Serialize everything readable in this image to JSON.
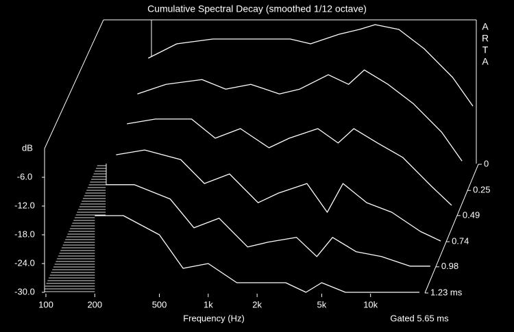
{
  "chart_data": {
    "type": "waterfall",
    "title": "Cumulative Spectral Decay (smoothed 1/12 octave)",
    "watermark": "ARTA",
    "ylabel": "dB",
    "xlabel": "Frequency (Hz)",
    "note": "Gated 5.65 ms",
    "log_x": true,
    "line_color": "#ffffff",
    "x": [
      200,
      300,
      500,
      700,
      1000,
      1500,
      2000,
      3000,
      4000,
      5000,
      7000,
      10000,
      15000,
      20000
    ],
    "xlim": [
      100,
      20000
    ],
    "xticks": [
      100,
      200,
      500,
      {
        "value": 1000,
        "label": "1k"
      },
      {
        "value": 2000,
        "label": "2k"
      },
      {
        "value": 5000,
        "label": "5k"
      },
      {
        "value": 10000,
        "label": "10k"
      }
    ],
    "ylim": [
      -30,
      0
    ],
    "yticks": [
      {
        "value": -6,
        "label": "-6.0"
      },
      {
        "value": -12,
        "label": "-12.0"
      },
      {
        "value": -18,
        "label": "-18.0"
      },
      {
        "value": -24,
        "label": "-24.0"
      },
      {
        "value": -30,
        "label": "-30.0"
      }
    ],
    "zlim": [
      0,
      1.23
    ],
    "zticks": [
      0,
      0.25,
      0.49,
      0.74,
      0.98,
      {
        "value": 1.23,
        "label": "1.23 ms"
      }
    ],
    "slices": [
      {
        "t": 0,
        "values": [
          -8,
          -5,
          -4,
          -4,
          -4,
          -4,
          -5,
          -3,
          -2,
          -1,
          -2,
          -6,
          -12,
          -18
        ]
      },
      {
        "t": 0.25,
        "values": [
          -10,
          -8,
          -7,
          -9,
          -8,
          -10,
          -9,
          -6,
          -8,
          -5,
          -8,
          -12,
          -18,
          -24
        ]
      },
      {
        "t": 0.49,
        "values": [
          -11,
          -10,
          -10,
          -14,
          -12,
          -16,
          -14,
          -12,
          -15,
          -12,
          -15,
          -18,
          -24,
          -28
        ]
      },
      {
        "t": 0.74,
        "values": [
          -12,
          -11,
          -13,
          -18,
          -16,
          -22,
          -20,
          -18,
          -24,
          -18,
          -22,
          -24,
          -28,
          -30
        ]
      },
      {
        "t": 0.98,
        "values": [
          -13,
          -13,
          -16,
          -22,
          -20,
          -26,
          -25,
          -24,
          -28,
          -24,
          -27,
          -28,
          -30,
          -30
        ]
      },
      {
        "t": 1.23,
        "values": [
          -14,
          -14,
          -18,
          -25,
          -24,
          -28,
          -28,
          -28,
          -30,
          -28,
          -30,
          -30,
          -30,
          -30
        ]
      }
    ]
  }
}
